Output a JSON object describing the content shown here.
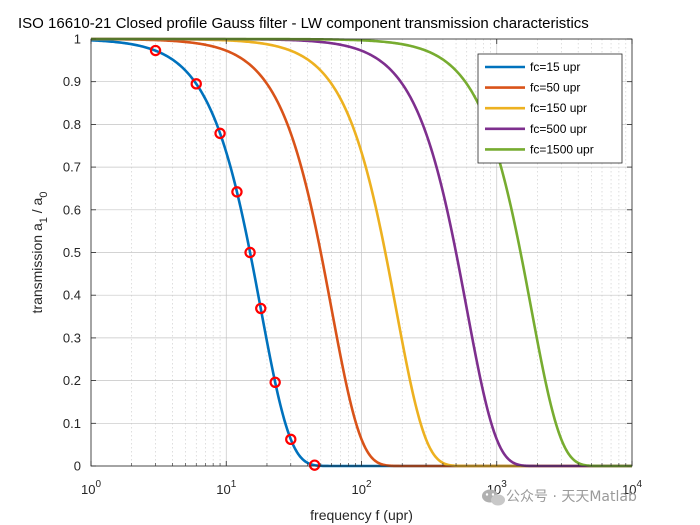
{
  "chart_data": {
    "type": "line",
    "title": "ISO 16610-21 Closed profile Gauss filter - LW component transmission characteristics",
    "xlabel": "frequency f (upr)",
    "ylabel_main": "transmission a",
    "ylabel_sub1": "1",
    "ylabel_mid": " / a",
    "ylabel_sub0": "0",
    "xscale": "log",
    "xlim": [
      1,
      10000
    ],
    "ylim": [
      0,
      1
    ],
    "x_ticks": [
      {
        "base": "10",
        "exp": "0",
        "value": 1
      },
      {
        "base": "10",
        "exp": "1",
        "value": 10
      },
      {
        "base": "10",
        "exp": "2",
        "value": 100
      },
      {
        "base": "10",
        "exp": "3",
        "value": 1000
      },
      {
        "base": "10",
        "exp": "4",
        "value": 10000
      }
    ],
    "y_ticks": [
      "0",
      "0.1",
      "0.2",
      "0.3",
      "0.4",
      "0.5",
      "0.6",
      "0.7",
      "0.8",
      "0.9",
      "1"
    ],
    "grid": true,
    "minor_grid": true,
    "legend_position": "top-right",
    "model": "a1/a0 = exp(-pi * (alpha * f / fc)^2), alpha = sqrt(ln2/pi)",
    "series": [
      {
        "name": "fc=15 upr",
        "fc": 15,
        "color": "#0072BD"
      },
      {
        "name": "fc=50 upr",
        "fc": 50,
        "color": "#D95319"
      },
      {
        "name": "fc=150 upr",
        "fc": 150,
        "color": "#EDB120"
      },
      {
        "name": "fc=500 upr",
        "fc": 500,
        "color": "#7E2F8E"
      },
      {
        "name": "fc=1500 upr",
        "fc": 1500,
        "color": "#77AC30"
      }
    ],
    "markers": {
      "color": "#FF0000",
      "series": "fc=15 upr",
      "points": [
        {
          "x": 3,
          "y": 0.973
        },
        {
          "x": 6,
          "y": 0.895
        },
        {
          "x": 9,
          "y": 0.779
        },
        {
          "x": 12,
          "y": 0.642
        },
        {
          "x": 15,
          "y": 0.5
        },
        {
          "x": 18,
          "y": 0.369
        },
        {
          "x": 23,
          "y": 0.196
        },
        {
          "x": 30,
          "y": 0.0625
        },
        {
          "x": 45,
          "y": 0.002
        }
      ]
    }
  },
  "watermark": {
    "text": "公众号 · 天天Matlab",
    "icon": "wechat-icon"
  }
}
